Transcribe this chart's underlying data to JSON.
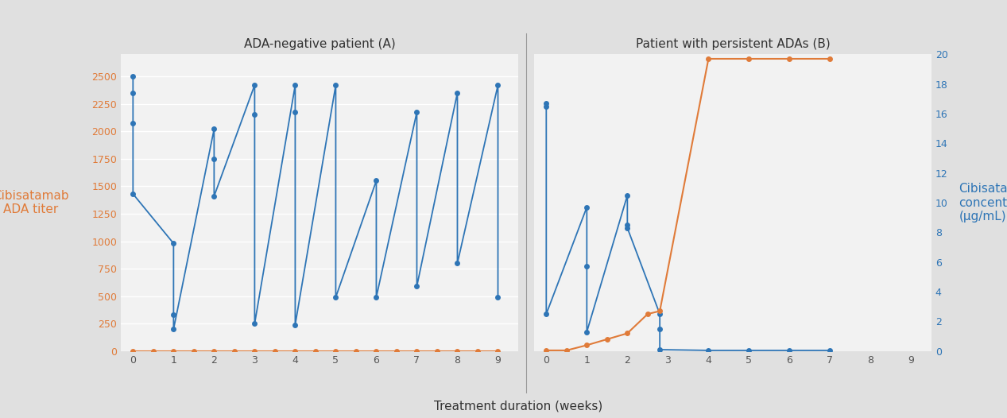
{
  "panel_A_title": "ADA-negative patient (A)",
  "panel_B_title": "Patient with persistent ADAs (B)",
  "blue_color": "#2e75b6",
  "orange_color": "#e07b39",
  "bg_color": "#e0e0e0",
  "plot_bg": "#f2f2f2",
  "xlabel": "Treatment duration (weeks)",
  "ylabel_left": "Cibisatamab\nADA titer",
  "ylabel_right": "Cibisatamab\nconcentration\n(μg/mL)",
  "left_ylim": [
    0,
    2700
  ],
  "left_yticks": [
    0,
    250,
    500,
    750,
    1000,
    1250,
    1500,
    1750,
    2000,
    2250,
    2500
  ],
  "right_ylim": [
    0,
    20
  ],
  "right_yticks": [
    0,
    2,
    4,
    6,
    8,
    10,
    12,
    14,
    16,
    18,
    20
  ],
  "xlim": [
    -0.3,
    9.5
  ],
  "xticks": [
    0,
    1,
    2,
    3,
    4,
    5,
    6,
    7,
    8,
    9
  ],
  "panelA_blue_x": [
    0,
    0,
    0,
    0,
    1,
    1,
    1,
    2,
    2,
    2,
    3,
    3,
    3,
    4,
    4,
    4,
    5,
    5,
    6,
    6,
    7,
    7,
    8,
    8,
    9,
    9
  ],
  "panelA_blue_y": [
    2500,
    2350,
    2075,
    1430,
    980,
    330,
    200,
    2020,
    1750,
    1410,
    2420,
    2150,
    250,
    2420,
    2175,
    240,
    2420,
    490,
    1550,
    490,
    2175,
    590,
    2350,
    800,
    2420,
    490
  ],
  "panelA_orange_x": [
    0,
    0.5,
    1,
    1.5,
    2,
    2.5,
    3,
    3.5,
    4,
    4.5,
    5,
    5.5,
    6,
    6.5,
    7,
    7.5,
    8,
    8.5,
    9
  ],
  "panelA_orange_y": [
    0,
    0,
    0,
    0,
    0,
    0,
    0,
    0,
    0,
    0,
    0,
    0,
    0,
    0,
    0,
    0,
    0,
    0,
    0
  ],
  "panelB_blue_x": [
    0,
    0,
    0,
    1,
    1,
    1,
    2,
    2,
    2,
    2.8,
    2.8,
    2.8,
    4,
    5,
    6,
    7
  ],
  "panelB_blue_y": [
    16.7,
    16.5,
    2.5,
    9.7,
    5.7,
    1.3,
    10.5,
    8.5,
    8.3,
    2.5,
    1.5,
    0.1,
    0.05,
    0.05,
    0.05,
    0.05
  ],
  "panelB_orange_x": [
    0,
    0.5,
    1,
    1.5,
    2,
    2.5,
    2.8,
    4,
    5,
    6,
    7
  ],
  "panelB_orange_y": [
    0.05,
    0.05,
    0.4,
    0.8,
    1.2,
    2.5,
    2.7,
    19.7,
    19.7,
    19.7,
    19.7
  ]
}
